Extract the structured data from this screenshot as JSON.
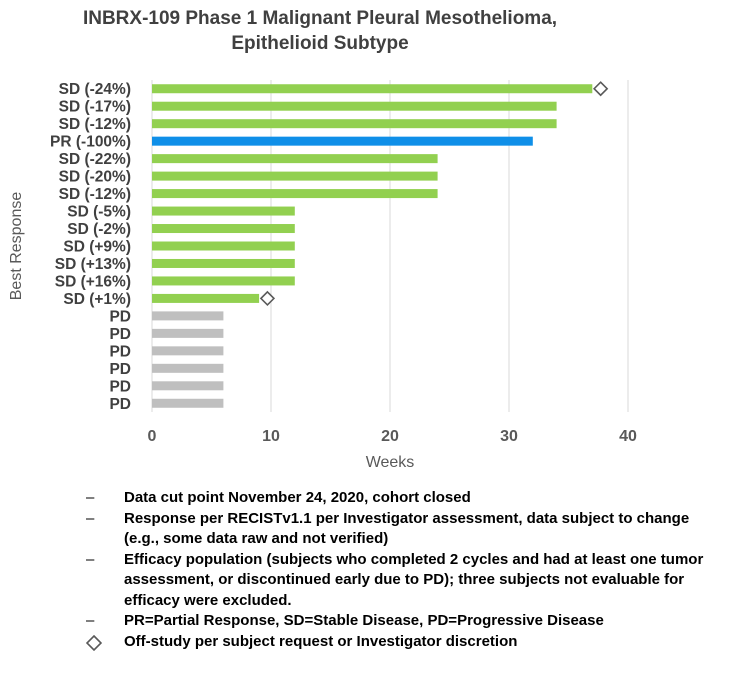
{
  "title_line1": "INBRX-109 Phase 1 Malignant Pleural Mesothelioma,",
  "title_line2": "Epithelioid Subtype",
  "chart_data": {
    "type": "bar",
    "orientation": "horizontal",
    "ylabel": "Best Response",
    "xlabel": "Weeks",
    "xlim": [
      0,
      40
    ],
    "xticks": [
      0,
      10,
      20,
      30,
      40
    ],
    "grid": true,
    "bars": [
      {
        "label": "SD (-24%)",
        "value": 37,
        "category": "SD",
        "off_study": true
      },
      {
        "label": "SD (-17%)",
        "value": 34,
        "category": "SD",
        "off_study": false
      },
      {
        "label": "SD (-12%)",
        "value": 34,
        "category": "SD",
        "off_study": false
      },
      {
        "label": "PR (-100%)",
        "value": 32,
        "category": "PR",
        "off_study": false
      },
      {
        "label": "SD (-22%)",
        "value": 24,
        "category": "SD",
        "off_study": false
      },
      {
        "label": "SD (-20%)",
        "value": 24,
        "category": "SD",
        "off_study": false
      },
      {
        "label": "SD (-12%)",
        "value": 24,
        "category": "SD",
        "off_study": false
      },
      {
        "label": "SD (-5%)",
        "value": 12,
        "category": "SD",
        "off_study": false
      },
      {
        "label": "SD (-2%)",
        "value": 12,
        "category": "SD",
        "off_study": false
      },
      {
        "label": "SD (+9%)",
        "value": 12,
        "category": "SD",
        "off_study": false
      },
      {
        "label": "SD (+13%)",
        "value": 12,
        "category": "SD",
        "off_study": false
      },
      {
        "label": "SD (+16%)",
        "value": 12,
        "category": "SD",
        "off_study": false
      },
      {
        "label": "SD (+1%)",
        "value": 9,
        "category": "SD",
        "off_study": true
      },
      {
        "label": "PD",
        "value": 6,
        "category": "PD",
        "off_study": false
      },
      {
        "label": "PD",
        "value": 6,
        "category": "PD",
        "off_study": false
      },
      {
        "label": "PD",
        "value": 6,
        "category": "PD",
        "off_study": false
      },
      {
        "label": "PD",
        "value": 6,
        "category": "PD",
        "off_study": false
      },
      {
        "label": "PD",
        "value": 6,
        "category": "PD",
        "off_study": false
      },
      {
        "label": "PD",
        "value": 6,
        "category": "PD",
        "off_study": false
      }
    ],
    "off_study_markers": [
      37.7,
      9.7
    ]
  },
  "colors": {
    "SD": "#92d050",
    "PR": "#0f8fe8",
    "PD": "#bfbfbf",
    "grid": "#d9d9d9",
    "tick_text": "#595959",
    "label_text": "#404040"
  },
  "notes": [
    {
      "marker": "–",
      "text": "Data cut point November 24, 2020, cohort closed"
    },
    {
      "marker": "–",
      "text": "Response per RECISTv1.1 per Investigator assessment, data subject to change (e.g., some data raw and not verified)"
    },
    {
      "marker": "–",
      "text": "Efficacy population (subjects who completed 2 cycles and had at least one tumor assessment, or discontinued early due to PD); three subjects not evaluable for efficacy were excluded."
    },
    {
      "marker": "–",
      "text": "PR=Partial Response, SD=Stable Disease, PD=Progressive Disease"
    }
  ],
  "legend_diamond_text": "Off-study per subject request or Investigator discretion"
}
